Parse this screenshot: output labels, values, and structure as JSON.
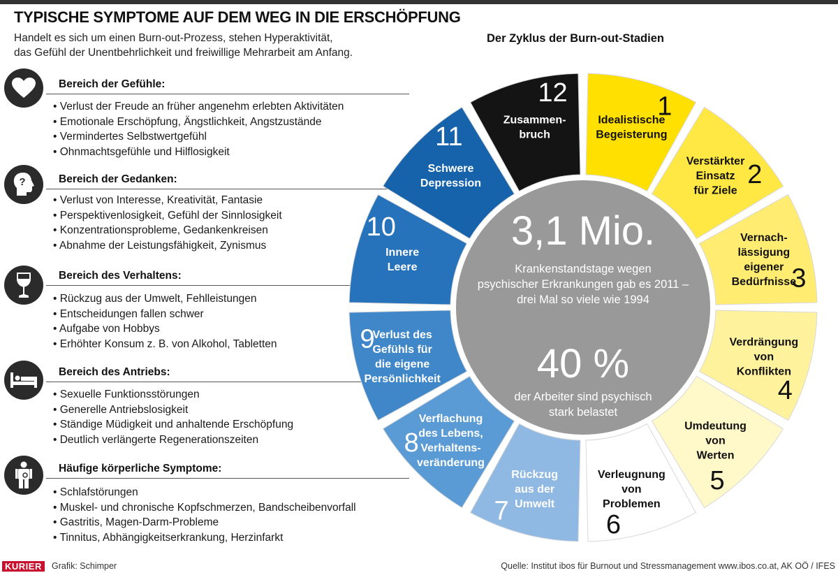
{
  "title": "TYPISCHE SYMPTOME AUF DEM WEG IN DIE ERSCHÖPFUNG",
  "subtitle_lines": [
    "Handelt es sich um einen Burn-out-Prozess, stehen Hyperaktivität,",
    "das Gefühl der Unentbehrlichkeit und freiwillige Mehrarbeit am Anfang."
  ],
  "categories": [
    {
      "icon": "heart-icon",
      "heading": "Bereich der Gefühle:",
      "items": [
        "Verlust der Freude an früher angenehm erlebten Aktivitäten",
        "Emotionale Erschöpfung, Ängstlichkeit, Angstzustände",
        "Vermindertes Selbstwertgefühl",
        "Ohnmachtsgefühle und Hilflosigkeit"
      ]
    },
    {
      "icon": "head-question-icon",
      "heading": "Bereich der Gedanken:",
      "items": [
        "Verlust von Interesse, Kreativität, Fantasie",
        "Perspektivenlosigkeit, Gefühl der Sinnlosigkeit",
        "Konzentrationsprobleme, Gedankenkreisen",
        "Abnahme der Leistungsfähigkeit, Zynismus"
      ]
    },
    {
      "icon": "wine-glass-icon",
      "heading": "Bereich des Verhaltens:",
      "items": [
        "Rückzug aus der Umwelt, Fehlleistungen",
        "Entscheidungen fallen schwer",
        "Aufgabe von Hobbys",
        "Erhöhter Konsum z. B. von Alkohol, Tabletten"
      ]
    },
    {
      "icon": "bed-icon",
      "heading": "Bereich des Antriebs:",
      "items": [
        "Sexuelle Funktionsstörungen",
        "Generelle Antriebslosigkeit",
        "Ständige Müdigkeit und anhaltende Erschöpfung",
        "Deutlich verlängerte Regenerationszeiten"
      ]
    },
    {
      "icon": "body-icon",
      "heading": "Häufige körperliche Symptome:",
      "items": [
        "Schlafstörungen",
        "Muskel- und chronische Kopfschmerzen, Bandscheibenvorfall",
        "Gastritis, Magen-Darm-Probleme",
        "Tinnitus, Abhängigkeitserkrankung, Herzinfarkt"
      ]
    }
  ],
  "cycle": {
    "title": "Der Zyklus der Burn-out-Stadien",
    "stages": [
      {
        "number": "1",
        "label": [
          "Idealistische",
          "Begeisterung"
        ],
        "color": "#ffe000"
      },
      {
        "number": "2",
        "label": [
          "Verstärkter",
          "Einsatz",
          "für Ziele"
        ],
        "color": "#ffe744"
      },
      {
        "number": "3",
        "label": [
          "Vernach-",
          "lässigung",
          "eigener",
          "Bedürfnisse"
        ],
        "color": "#ffec70"
      },
      {
        "number": "4",
        "label": [
          "Verdrängung",
          "von",
          "Konflikten"
        ],
        "color": "#fff29c"
      },
      {
        "number": "5",
        "label": [
          "Umdeutung",
          "von",
          "Werten"
        ],
        "color": "#fff8c8"
      },
      {
        "number": "6",
        "label": [
          "Verleugnung",
          "von",
          "Problemen"
        ],
        "color": "#ffffff"
      },
      {
        "number": "7",
        "label": [
          "Rückzug",
          "aus der",
          "Umwelt"
        ],
        "color": "#8fb8e2"
      },
      {
        "number": "8",
        "label": [
          "Verflachung",
          "des Lebens,",
          "Verhaltens-",
          "veränderung"
        ],
        "color": "#5b9bd5"
      },
      {
        "number": "9",
        "label": [
          "Verlust des",
          "Gefühls für",
          "die eigene",
          "Persönlichkeit"
        ],
        "color": "#3f87c9"
      },
      {
        "number": "10",
        "label": [
          "Innere",
          "Leere"
        ],
        "color": "#2773bb"
      },
      {
        "number": "11",
        "label": [
          "Schwere",
          "Depression"
        ],
        "color": "#1763ab"
      },
      {
        "number": "12",
        "label": [
          "Zusammen-",
          "bruch"
        ],
        "color": "#141414"
      }
    ],
    "center": {
      "big1": "3,1 Mio.",
      "text1": [
        "Krankenstandstage wegen",
        "psychischer Erkrankungen gab es 2011 –",
        "drei Mal so viele wie 1994"
      ],
      "big2": "40 %",
      "text2": [
        "der Arbeiter sind psychisch",
        "stark belastet"
      ],
      "color": "#999999"
    }
  },
  "footer": {
    "brand": "KURIER",
    "credit": "Grafik: Schimper",
    "source": "Quelle: Institut ibos für Burnout und Stressmanagement www.ibos.co.at, AK OÖ / IFES"
  },
  "colors": {
    "background": "#ffffff",
    "dark": "#2b2b2b",
    "yellow": "#ffe000",
    "blue": "#2773bb",
    "brand": "#c8102e"
  }
}
